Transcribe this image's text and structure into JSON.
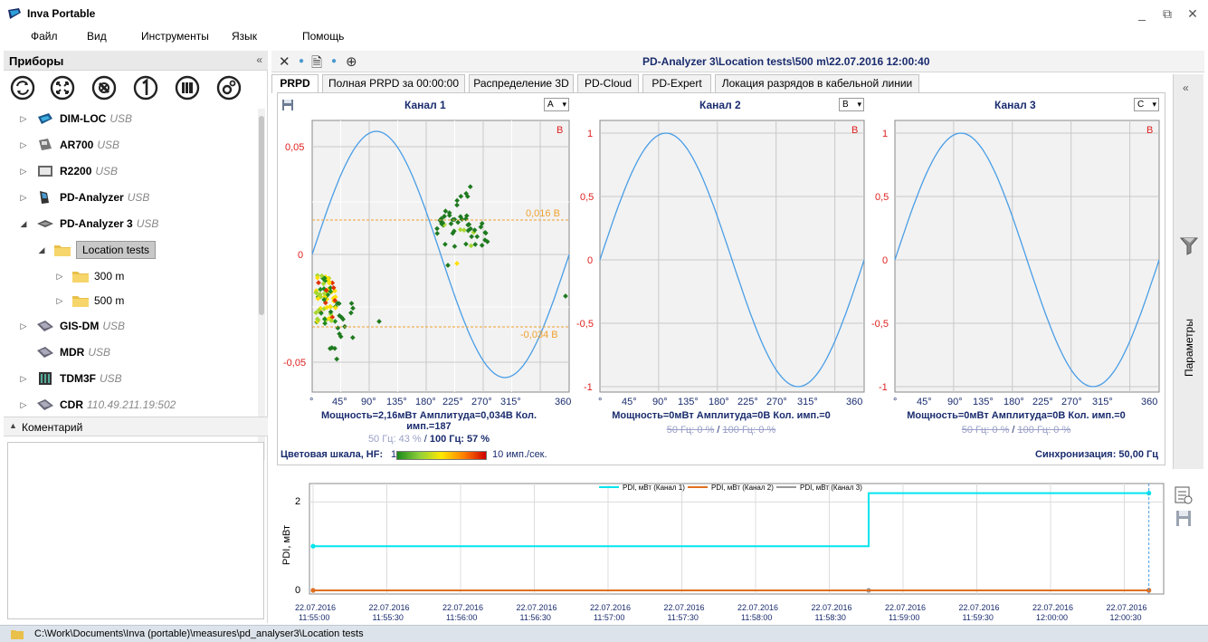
{
  "app": {
    "title": "Inva Portable",
    "window_controls": {
      "minimize": "_",
      "restore": "⧉",
      "close": "✕"
    }
  },
  "menu": [
    "Файл",
    "Вид",
    "Инструменты",
    "Язык",
    "Помощь"
  ],
  "left_panel": {
    "title": "Приборы",
    "collapse": "«",
    "toolbar_icons": [
      "refresh-icon",
      "expand-icon",
      "disconnect-icon",
      "number-one-icon",
      "library-icon",
      "settings-icon"
    ],
    "devices": [
      {
        "name": "DIM-LOC",
        "conn": "USB"
      },
      {
        "name": "AR700",
        "conn": "USB"
      },
      {
        "name": "R2200",
        "conn": "USB"
      },
      {
        "name": "PD-Analyzer",
        "conn": "USB"
      },
      {
        "name": "PD-Analyzer 3",
        "conn": "USB"
      },
      {
        "name": "GIS-DM",
        "conn": "USB"
      },
      {
        "name": "MDR",
        "conn": "USB"
      },
      {
        "name": "TDM3F",
        "conn": "USB"
      },
      {
        "name": "CDR",
        "conn": "110.49.211.19:502"
      }
    ],
    "folders": {
      "location": "Location tests",
      "sub1": "300 m",
      "sub2": "500 m"
    },
    "comment_title": "Коментарий"
  },
  "main": {
    "title": "PD-Analyzer 3\\Location tests\\500 m\\22.07.2016 12:00:40",
    "tabs": [
      "PRPD",
      "Полная PRPD за 00:00:00",
      "Распределение 3D",
      "PD-Cloud",
      "PD-Expert",
      "Локация разрядов в кабельной линии"
    ],
    "active_tab": 0
  },
  "channels": [
    {
      "title": "Канал 1",
      "phase": "A",
      "corner": "B",
      "yticks": [
        "0,05",
        "0",
        "-0,05"
      ],
      "xticks": [
        "°",
        "45°",
        "90°",
        "135°",
        "180°",
        "225°",
        "270°",
        "315°",
        "360"
      ],
      "threshold_pos": "0,016 В",
      "threshold_neg": "-0,034 В",
      "stats": "Мощность=2,16мВт   Амплитуда=0,034В   Кол. имп.=187",
      "sub_a": "50 Гц: 43 %",
      "sub_sep": " / ",
      "sub_b": "100 Гц: 57 %"
    },
    {
      "title": "Канал 2",
      "phase": "B",
      "corner": "B",
      "yticks": [
        "1",
        "0,5",
        "0",
        "-0,5",
        "-1"
      ],
      "xticks": [
        "°",
        "45°",
        "90°",
        "135°",
        "180°",
        "225°",
        "270°",
        "315°",
        "360"
      ],
      "stats": "Мощность=0мВт   Амплитуда=0В   Кол. имп.=0",
      "sub_a": "50 Гц: 0 %",
      "sub_sep": " / ",
      "sub_b": "100 Гц: 0 %"
    },
    {
      "title": "Канал 3",
      "phase": "C",
      "corner": "B",
      "yticks": [
        "1",
        "0,5",
        "0",
        "-0,5",
        "-1"
      ],
      "xticks": [
        "°",
        "45°",
        "90°",
        "135°",
        "180°",
        "225°",
        "270°",
        "315°",
        "360"
      ],
      "stats": "Мощность=0мВт   Амплитуда=0В   Кол. имп.=0",
      "sub_a": "50 Гц: 0 %",
      "sub_sep": " / ",
      "sub_b": "100 Гц: 0 %"
    }
  ],
  "colorbar": {
    "label": "Цветовая шкала, HF:",
    "min": "1",
    "max": "10 имп./сек.",
    "colors": [
      "#1c8a1c",
      "#8fd03a",
      "#ffe800",
      "#ff8000",
      "#d00000"
    ]
  },
  "sync": "Синхронизация: 50,00 Гц",
  "params_panel": {
    "collapse": "«",
    "label": "Параметры"
  },
  "chart_data": {
    "type": "line",
    "ylabel": "PDI, мВт",
    "yticks": [
      "2",
      "0"
    ],
    "x": [
      "22.07.2016 11:55:00",
      "22.07.2016 11:55:30",
      "22.07.2016 11:56:00",
      "22.07.2016 11:56:30",
      "22.07.2016 11:57:00",
      "22.07.2016 11:57:30",
      "22.07.2016 11:58:00",
      "22.07.2016 11:58:30",
      "22.07.2016 11:59:00",
      "22.07.2016 11:59:30",
      "22.07.2016 12:00:00",
      "22.07.2016 12:00:30"
    ],
    "xtick_dates": [
      "22.07.2016",
      "22.07.2016",
      "22.07.2016",
      "22.07.2016",
      "22.07.2016",
      "22.07.2016",
      "22.07.2016",
      "22.07.2016",
      "22.07.2016",
      "22.07.2016",
      "22.07.2016",
      "22.07.2016"
    ],
    "xtick_times": [
      "11:55:00",
      "11:55:30",
      "11:56:00",
      "11:56:30",
      "11:57:00",
      "11:57:30",
      "11:58:00",
      "11:58:30",
      "11:59:00",
      "11:59:30",
      "12:00:00",
      "12:00:30"
    ],
    "series": [
      {
        "name": "PDI, мВт (Канал 1)",
        "color": "#00e5ee",
        "points": [
          [
            "11:55:00",
            1.0
          ],
          [
            "11:58:46",
            1.0
          ],
          [
            "11:58:46",
            2.2
          ],
          [
            "12:00:40",
            2.2
          ]
        ]
      },
      {
        "name": "PDI, мВт (Канал 2)",
        "color": "#e07020",
        "points": [
          [
            "11:55:00",
            0
          ],
          [
            "12:00:40",
            0
          ]
        ]
      },
      {
        "name": "PDI, мВт (Канал 3)",
        "color": "#999999",
        "points": [
          [
            "11:55:00",
            0
          ],
          [
            "11:58:46",
            0
          ],
          [
            "12:00:40",
            0
          ]
        ]
      }
    ],
    "ylim": [
      0,
      2.5
    ],
    "legend": "top"
  },
  "status": {
    "path": "C:\\Work\\Documents\\Inva (portable)\\measures\\pd_analyser3\\Location tests"
  }
}
